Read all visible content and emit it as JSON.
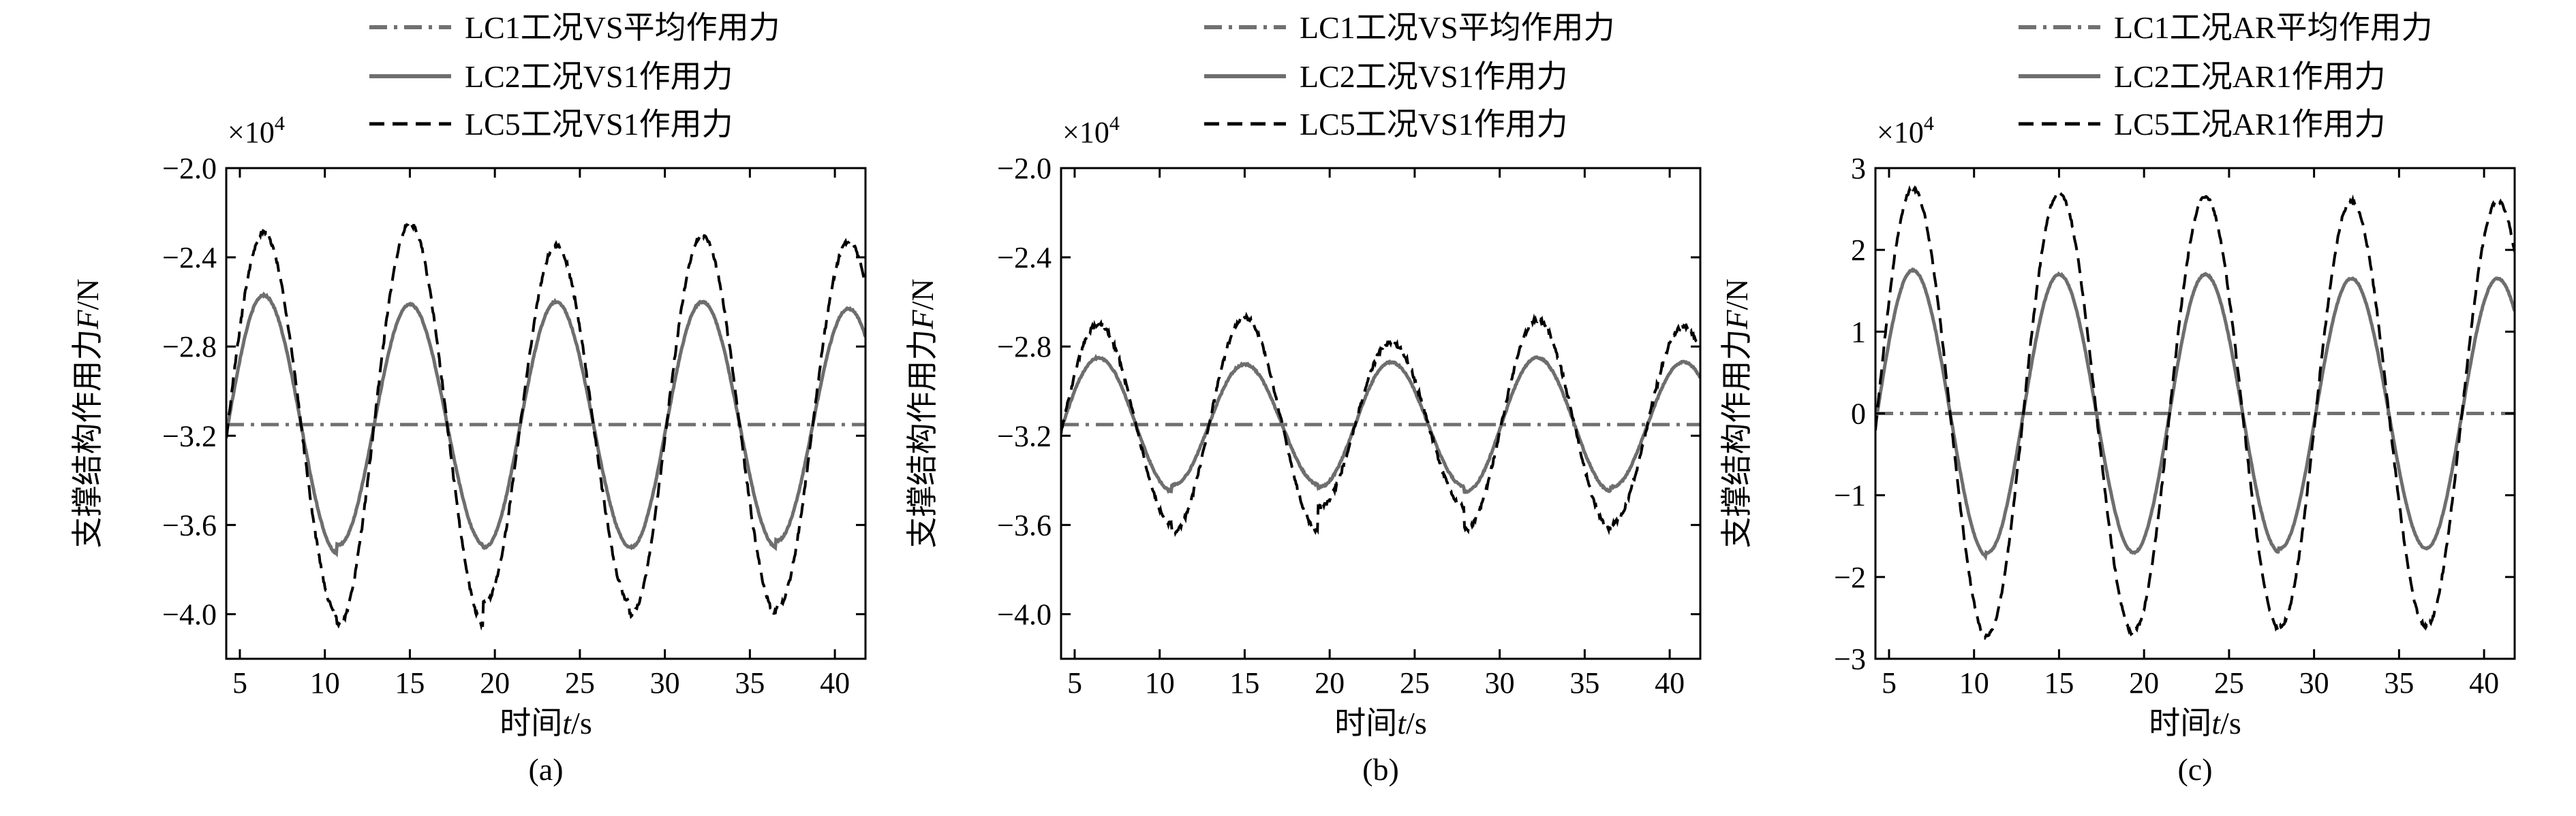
{
  "chart_data": [
    {
      "type": "line",
      "panel_label": "(a)",
      "xlabel_prefix": "时间",
      "xlabel_var": "t",
      "xlabel_unit": "/s",
      "ylabel_prefix": "支撑结构作用力",
      "ylabel_var": "F",
      "ylabel_unit": "/N",
      "y_multiplier": "×10",
      "y_exponent": "4",
      "xlim": [
        4.2,
        41.8
      ],
      "ylim": [
        -4.2,
        -2.0
      ],
      "xticks": [
        5,
        10,
        15,
        20,
        25,
        30,
        35,
        40
      ],
      "yticks": [
        -2.0,
        -2.4,
        -2.8,
        -3.2,
        -3.6,
        -4.0
      ],
      "ytick_labels": [
        "−2.0",
        "−2.4",
        "−2.8",
        "−3.2",
        "−3.6",
        "−4.0"
      ],
      "wave": {
        "period": 8.6,
        "peak_time": 6.4,
        "trough_time": 10.8,
        "noise": 0.02
      },
      "series": [
        {
          "name": "LC1工况VS平均作用力",
          "style": "dashdot",
          "color": "#707070",
          "mean": -3.15,
          "amplitudes": [
            0
          ]
        },
        {
          "name": "LC2工况VS1作用力",
          "style": "solid",
          "color": "#6e6e6e",
          "mean": -3.15,
          "amplitudes": [
            0.58,
            0.54,
            0.55,
            0.55,
            0.52
          ]
        },
        {
          "name": "LC5工况VS1作用力",
          "style": "dashed",
          "color": "#000000",
          "mean": -3.15,
          "amplitudes": [
            0.86,
            0.9,
            0.8,
            0.85,
            0.82
          ]
        }
      ]
    },
    {
      "type": "line",
      "panel_label": "(b)",
      "xlabel_prefix": "时间",
      "xlabel_var": "t",
      "xlabel_unit": "/s",
      "ylabel_prefix": "支撑结构作用力",
      "ylabel_var": "F",
      "ylabel_unit": "/N",
      "y_multiplier": "×10",
      "y_exponent": "4",
      "xlim": [
        4.2,
        41.8
      ],
      "ylim": [
        -4.2,
        -2.0
      ],
      "xticks": [
        5,
        10,
        15,
        20,
        25,
        30,
        35,
        40
      ],
      "yticks": [
        -2.0,
        -2.4,
        -2.8,
        -3.2,
        -3.6,
        -4.0
      ],
      "ytick_labels": [
        "−2.0",
        "−2.4",
        "−2.8",
        "−3.2",
        "−3.6",
        "−4.0"
      ],
      "wave": {
        "period": 8.6,
        "peak_time": 6.4,
        "trough_time": 10.8,
        "noise": 0.02
      },
      "series": [
        {
          "name": "LC1工况VS平均作用力",
          "style": "dashdot",
          "color": "#707070",
          "mean": -3.15,
          "amplitudes": [
            0
          ]
        },
        {
          "name": "LC2工况VS1作用力",
          "style": "solid",
          "color": "#6e6e6e",
          "mean": -3.15,
          "amplitudes": [
            0.3,
            0.27,
            0.28,
            0.3,
            0.28
          ]
        },
        {
          "name": "LC5工况VS1作用力",
          "style": "dashed",
          "color": "#000000",
          "mean": -3.15,
          "amplitudes": [
            0.45,
            0.48,
            0.37,
            0.47,
            0.44
          ]
        }
      ]
    },
    {
      "type": "line",
      "panel_label": "(c)",
      "xlabel_prefix": "时间",
      "xlabel_var": "t",
      "xlabel_unit": "/s",
      "ylabel_prefix": "支撑结构作用力",
      "ylabel_var": "F",
      "ylabel_unit": "/N",
      "y_multiplier": "×10",
      "y_exponent": "4",
      "xlim": [
        4.2,
        41.8
      ],
      "ylim": [
        -3.0,
        3.0
      ],
      "xticks": [
        5,
        10,
        15,
        20,
        25,
        30,
        35,
        40
      ],
      "yticks": [
        3,
        2,
        1,
        0,
        -1,
        -2,
        -3
      ],
      "ytick_labels": [
        "3",
        "2",
        "1",
        "0",
        "−1",
        "−2",
        "−3"
      ],
      "wave": {
        "period": 8.6,
        "peak_time": 6.4,
        "trough_time": 10.8,
        "noise": 0.04
      },
      "series": [
        {
          "name": "LC1工况AR平均作用力",
          "style": "dashdot",
          "color": "#707070",
          "mean": 0.0,
          "amplitudes": [
            0
          ]
        },
        {
          "name": "LC2工况AR1作用力",
          "style": "solid",
          "color": "#6e6e6e",
          "mean": 0.0,
          "amplitudes": [
            1.75,
            1.7,
            1.7,
            1.65,
            1.65
          ]
        },
        {
          "name": "LC5工况AR1作用力",
          "style": "dashed",
          "color": "#000000",
          "mean": 0.0,
          "amplitudes": [
            2.75,
            2.7,
            2.65,
            2.6,
            2.6
          ]
        }
      ]
    }
  ]
}
